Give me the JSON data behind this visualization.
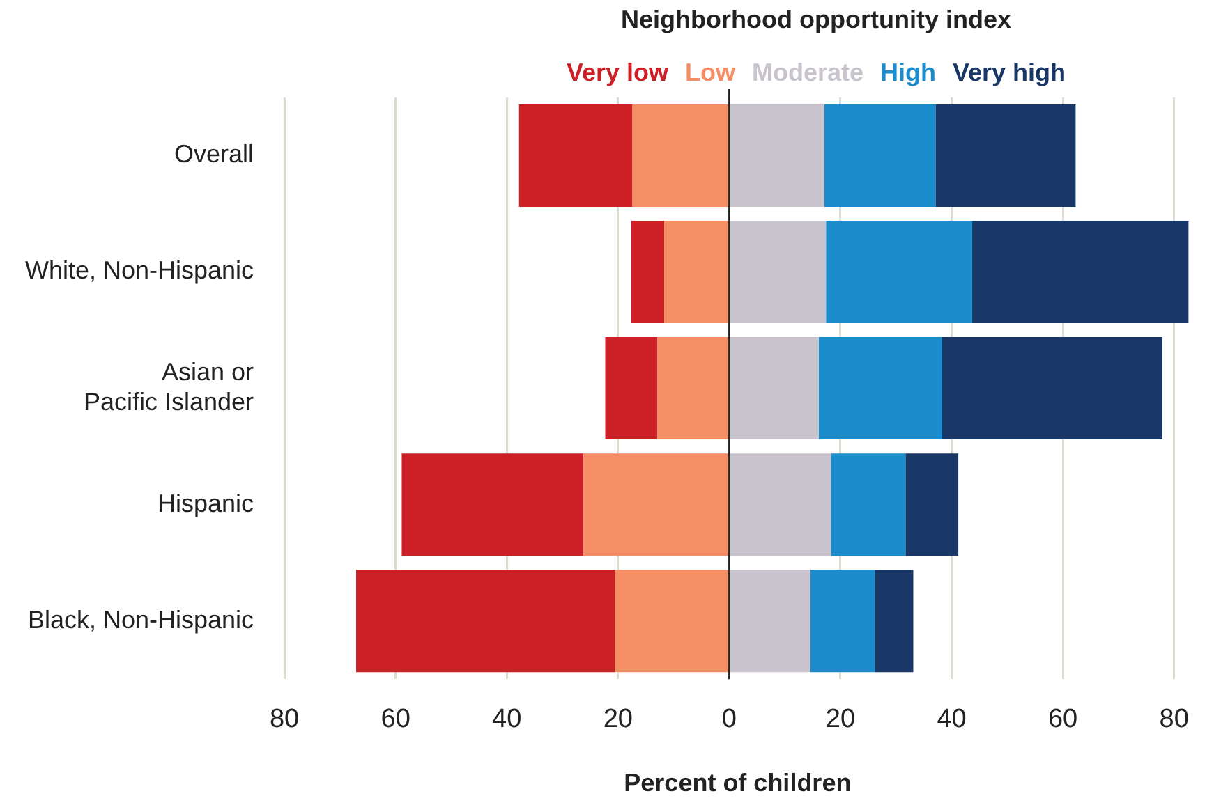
{
  "chart_data": {
    "type": "bar",
    "orientation": "horizontal",
    "stacked": true,
    "legend_title": "Neighborhood opportunity index",
    "xlabel": "Percent of children",
    "categories": [
      "Overall",
      "White, Non-Hispanic",
      "Asian or\nPacific Islander",
      "Hispanic",
      "Black, Non-Hispanic"
    ],
    "series": [
      {
        "name": "Low",
        "color": "#f58d65",
        "values": [
          -17.4,
          -11.7,
          -12.9,
          -26.2,
          -20.6
        ]
      },
      {
        "name": "Very low",
        "color": "#cc1f26",
        "values": [
          -20.4,
          -5.9,
          -9.4,
          -32.7,
          -46.5
        ]
      },
      {
        "name": "Moderate",
        "color": "#c8c3cd",
        "values": [
          17.1,
          17.4,
          16.1,
          18.3,
          14.6
        ]
      },
      {
        "name": "High",
        "color": "#1b8ccc",
        "values": [
          20.0,
          26.3,
          22.2,
          13.4,
          11.6
        ]
      },
      {
        "name": "Very high",
        "color": "#193767",
        "values": [
          25.2,
          38.9,
          39.6,
          9.5,
          6.9
        ]
      }
    ],
    "xlim": [
      -80,
      83
    ],
    "xticks": [
      {
        "value": -80,
        "label": "80"
      },
      {
        "value": -60,
        "label": "60"
      },
      {
        "value": -40,
        "label": "40"
      },
      {
        "value": -20,
        "label": "20"
      },
      0,
      20,
      40,
      60,
      80
    ],
    "ref_lines": [
      {
        "axis": "x",
        "value": 0,
        "color": "#222222"
      }
    ],
    "grid": "x",
    "legend": "top"
  }
}
